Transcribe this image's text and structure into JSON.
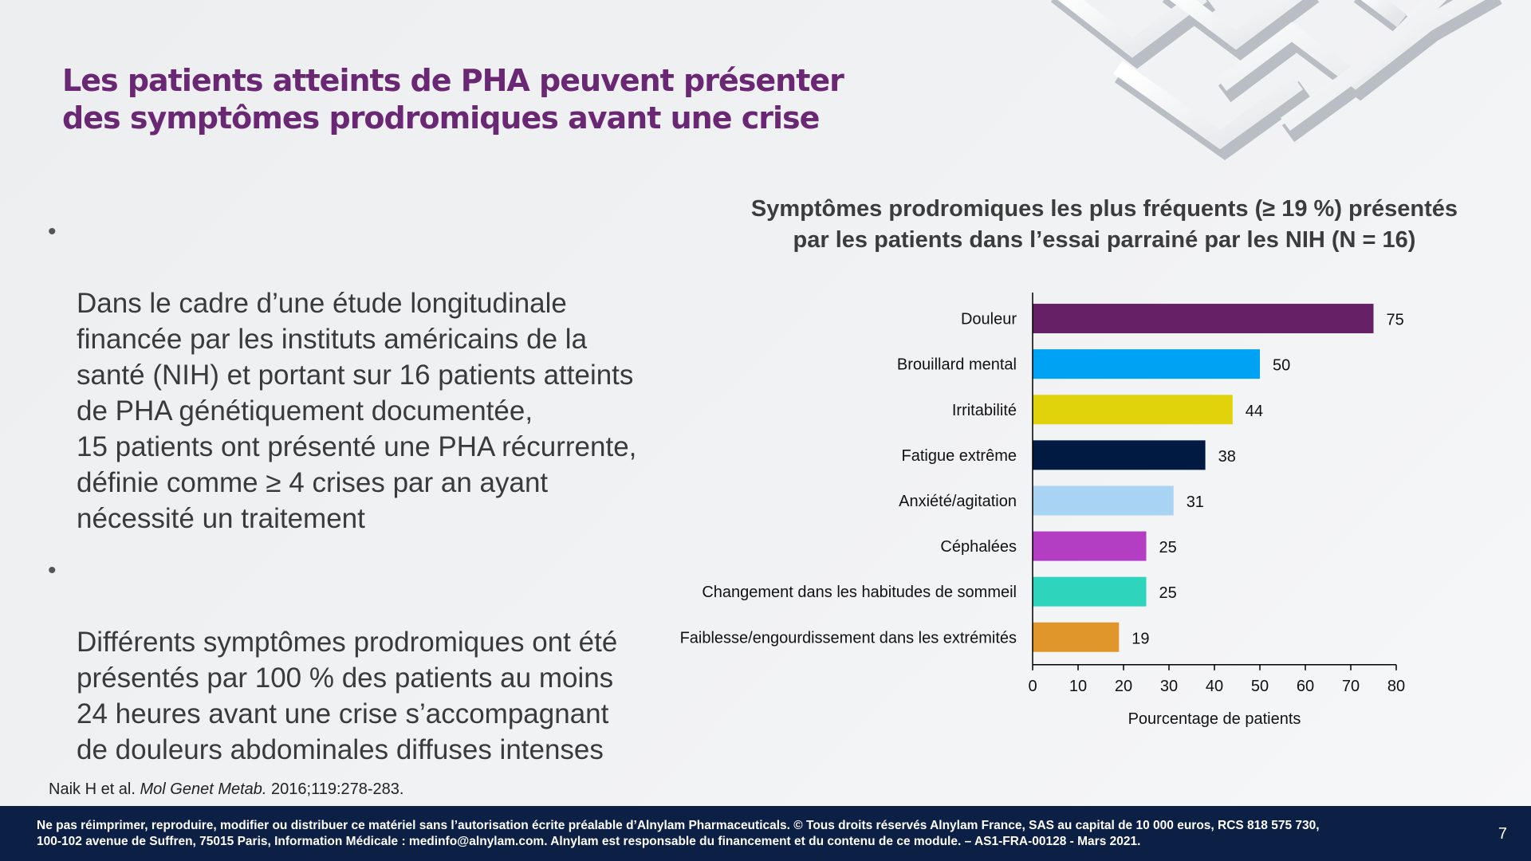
{
  "slide": {
    "title": "Les patients atteints de PHA peuvent présenter des symptômes prodromiques avant une crise",
    "bullets": [
      "Dans le cadre d’une étude longitudinale\nfinancée par les instituts américains de la\nsanté (NIH) et portant sur 16 patients atteints\nde PHA génétiquement documentée,\n15 patients ont présenté une PHA récurrente,\ndéfinie comme  ≥ 4 crises par an ayant\nnécessité un traitement",
      "Différents symptômes prodromiques ont été\nprésentés par 100 % des patients au moins\n24 heures avant une crise s’accompagnant\nde douleurs abdominales diffuses intenses"
    ],
    "bullet_glyph": "•",
    "citation": {
      "authors": "Naik H et al.",
      "journal": "Mol Genet Metab.",
      "ref": "2016;119:278-283."
    },
    "footer": "Ne pas réimprimer, reproduire, modifier ou distribuer ce matériel sans l’autorisation écrite préalable d’Alnylam Pharmaceuticals. © Tous droits réservés Alnylam France, SAS au capital de 10 000 euros, RCS 818 575 730,\n100-102 avenue de Suffren, 75015 Paris, Information Médicale : medinfo@alnylam.com. Alnylam est responsable du financement et du contenu de ce module. – AS1-FRA-00128 - Mars 2021.",
    "page_number": "7",
    "colors": {
      "title": "#6a2774",
      "footer_bg": "#0c1f45"
    }
  },
  "chart_data": {
    "type": "bar",
    "orientation": "horizontal",
    "title": "Symptômes prodromiques les plus fréquents (≥ 19 %) présentés\npar les patients dans l’essai parrainé par les NIH (N = 16)",
    "categories": [
      "Douleur",
      "Brouillard mental",
      "Irritabilité",
      "Fatigue extrême",
      "Anxiété/agitation",
      "Céphalées",
      "Changement dans les habitudes de sommeil",
      "Faiblesse/engourdissement dans les extrémités"
    ],
    "values": [
      75,
      50,
      44,
      38,
      31,
      25,
      25,
      19
    ],
    "colors": [
      "#662066",
      "#00a3f4",
      "#e0d30c",
      "#001a42",
      "#a8d3f2",
      "#b33ec4",
      "#2ed4bb",
      "#e0962a"
    ],
    "xlabel": "Pourcentage de patients",
    "ylabel": "",
    "xlim": [
      0,
      80
    ],
    "xticks": [
      0,
      10,
      20,
      30,
      40,
      50,
      60,
      70,
      80
    ],
    "grid": false,
    "legend": "none"
  }
}
